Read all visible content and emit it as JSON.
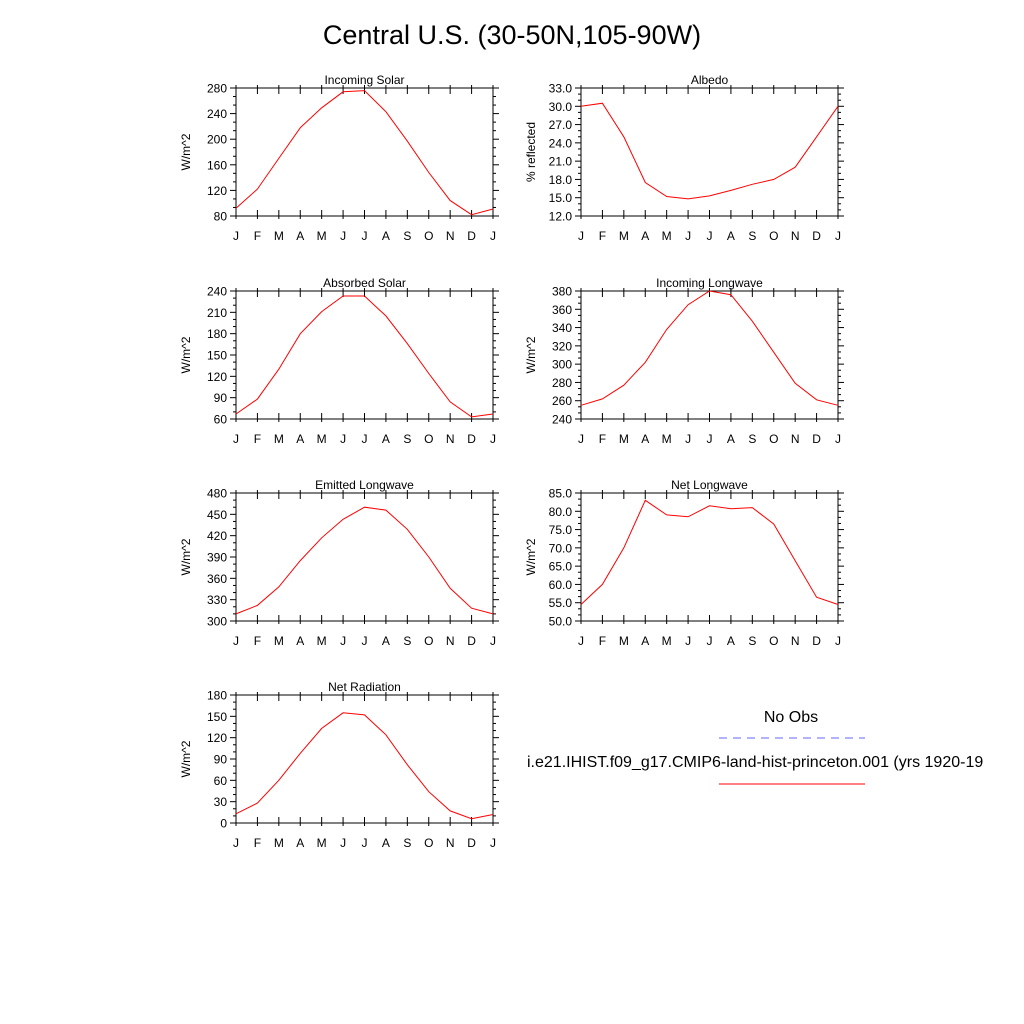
{
  "page_title": "Central U.S. (30-50N,105-90W)",
  "legend": {
    "obs_label": "No Obs",
    "model_label": "i.e21.IHIST.f09_g17.CMIP6-land-hist-princeton.001 (yrs 1920-19",
    "obs_color": "#6666ff",
    "model_color": "#ff0000"
  },
  "chart_data": [
    {
      "type": "line",
      "title": "Incoming Solar",
      "ylabel": "W/m^2",
      "x": [
        "J",
        "F",
        "M",
        "A",
        "M",
        "J",
        "J",
        "A",
        "S",
        "O",
        "N",
        "D",
        "J"
      ],
      "ylim": [
        80,
        280
      ],
      "yticks": [
        "80",
        "120",
        "160",
        "200",
        "240",
        "280"
      ],
      "series": [
        {
          "values": [
            92,
            122,
            170,
            218,
            249,
            274,
            276,
            243,
            197,
            148,
            104,
            82,
            91
          ]
        }
      ]
    },
    {
      "type": "line",
      "title": "Albedo",
      "ylabel": "% reflected",
      "x": [
        "J",
        "F",
        "M",
        "A",
        "M",
        "J",
        "J",
        "A",
        "S",
        "O",
        "N",
        "D",
        "J"
      ],
      "ylim": [
        12,
        33
      ],
      "yticks": [
        "12.0",
        "15.0",
        "18.0",
        "21.0",
        "24.0",
        "27.0",
        "30.0",
        "33.0"
      ],
      "series": [
        {
          "values": [
            30.0,
            30.5,
            25.0,
            17.5,
            15.2,
            14.8,
            15.3,
            16.2,
            17.2,
            18.0,
            20.0,
            25.0,
            30.0
          ]
        }
      ]
    },
    {
      "type": "line",
      "title": "Absorbed Solar",
      "ylabel": "W/m^2",
      "x": [
        "J",
        "F",
        "M",
        "A",
        "M",
        "J",
        "J",
        "A",
        "S",
        "O",
        "N",
        "D",
        "J"
      ],
      "ylim": [
        60,
        240
      ],
      "yticks": [
        "60",
        "90",
        "120",
        "150",
        "180",
        "210",
        "240"
      ],
      "series": [
        {
          "values": [
            67,
            88,
            130,
            180,
            211,
            233,
            233,
            205,
            166,
            124,
            84,
            63,
            67
          ]
        }
      ]
    },
    {
      "type": "line",
      "title": "Incoming Longwave",
      "ylabel": "W/m^2",
      "x": [
        "J",
        "F",
        "M",
        "A",
        "M",
        "J",
        "J",
        "A",
        "S",
        "O",
        "N",
        "D",
        "J"
      ],
      "ylim": [
        240,
        380
      ],
      "yticks": [
        "240",
        "260",
        "280",
        "300",
        "320",
        "340",
        "360",
        "380"
      ],
      "series": [
        {
          "values": [
            255,
            262,
            277,
            302,
            338,
            365,
            380,
            376,
            347,
            313,
            279,
            261,
            255
          ]
        }
      ]
    },
    {
      "type": "line",
      "title": "Emitted Longwave",
      "ylabel": "W/m^2",
      "x": [
        "J",
        "F",
        "M",
        "A",
        "M",
        "J",
        "J",
        "A",
        "S",
        "O",
        "N",
        "D",
        "J"
      ],
      "ylim": [
        300,
        480
      ],
      "yticks": [
        "300",
        "330",
        "360",
        "390",
        "420",
        "450",
        "480"
      ],
      "series": [
        {
          "values": [
            310,
            322,
            348,
            385,
            417,
            443,
            460,
            456,
            429,
            390,
            346,
            318,
            310
          ]
        }
      ]
    },
    {
      "type": "line",
      "title": "Net Longwave",
      "ylabel": "W/m^2",
      "x": [
        "J",
        "F",
        "M",
        "A",
        "M",
        "J",
        "J",
        "A",
        "S",
        "O",
        "N",
        "D",
        "J"
      ],
      "ylim": [
        50,
        85
      ],
      "yticks": [
        "50.0",
        "55.0",
        "60.0",
        "65.0",
        "70.0",
        "75.0",
        "80.0",
        "85.0"
      ],
      "series": [
        {
          "values": [
            54.5,
            60.0,
            70.0,
            83.0,
            79.0,
            78.5,
            81.5,
            80.7,
            81.0,
            76.5,
            66.5,
            56.5,
            54.5
          ]
        }
      ]
    },
    {
      "type": "line",
      "title": "Net Radiation",
      "ylabel": "W/m^2",
      "x": [
        "J",
        "F",
        "M",
        "A",
        "M",
        "J",
        "J",
        "A",
        "S",
        "O",
        "N",
        "D",
        "J"
      ],
      "ylim": [
        0,
        180
      ],
      "yticks": [
        "0",
        "30",
        "60",
        "90",
        "120",
        "150",
        "180"
      ],
      "series": [
        {
          "values": [
            13,
            28,
            60,
            98,
            133,
            155,
            152,
            124,
            82,
            44,
            17,
            6,
            12
          ]
        }
      ]
    }
  ]
}
